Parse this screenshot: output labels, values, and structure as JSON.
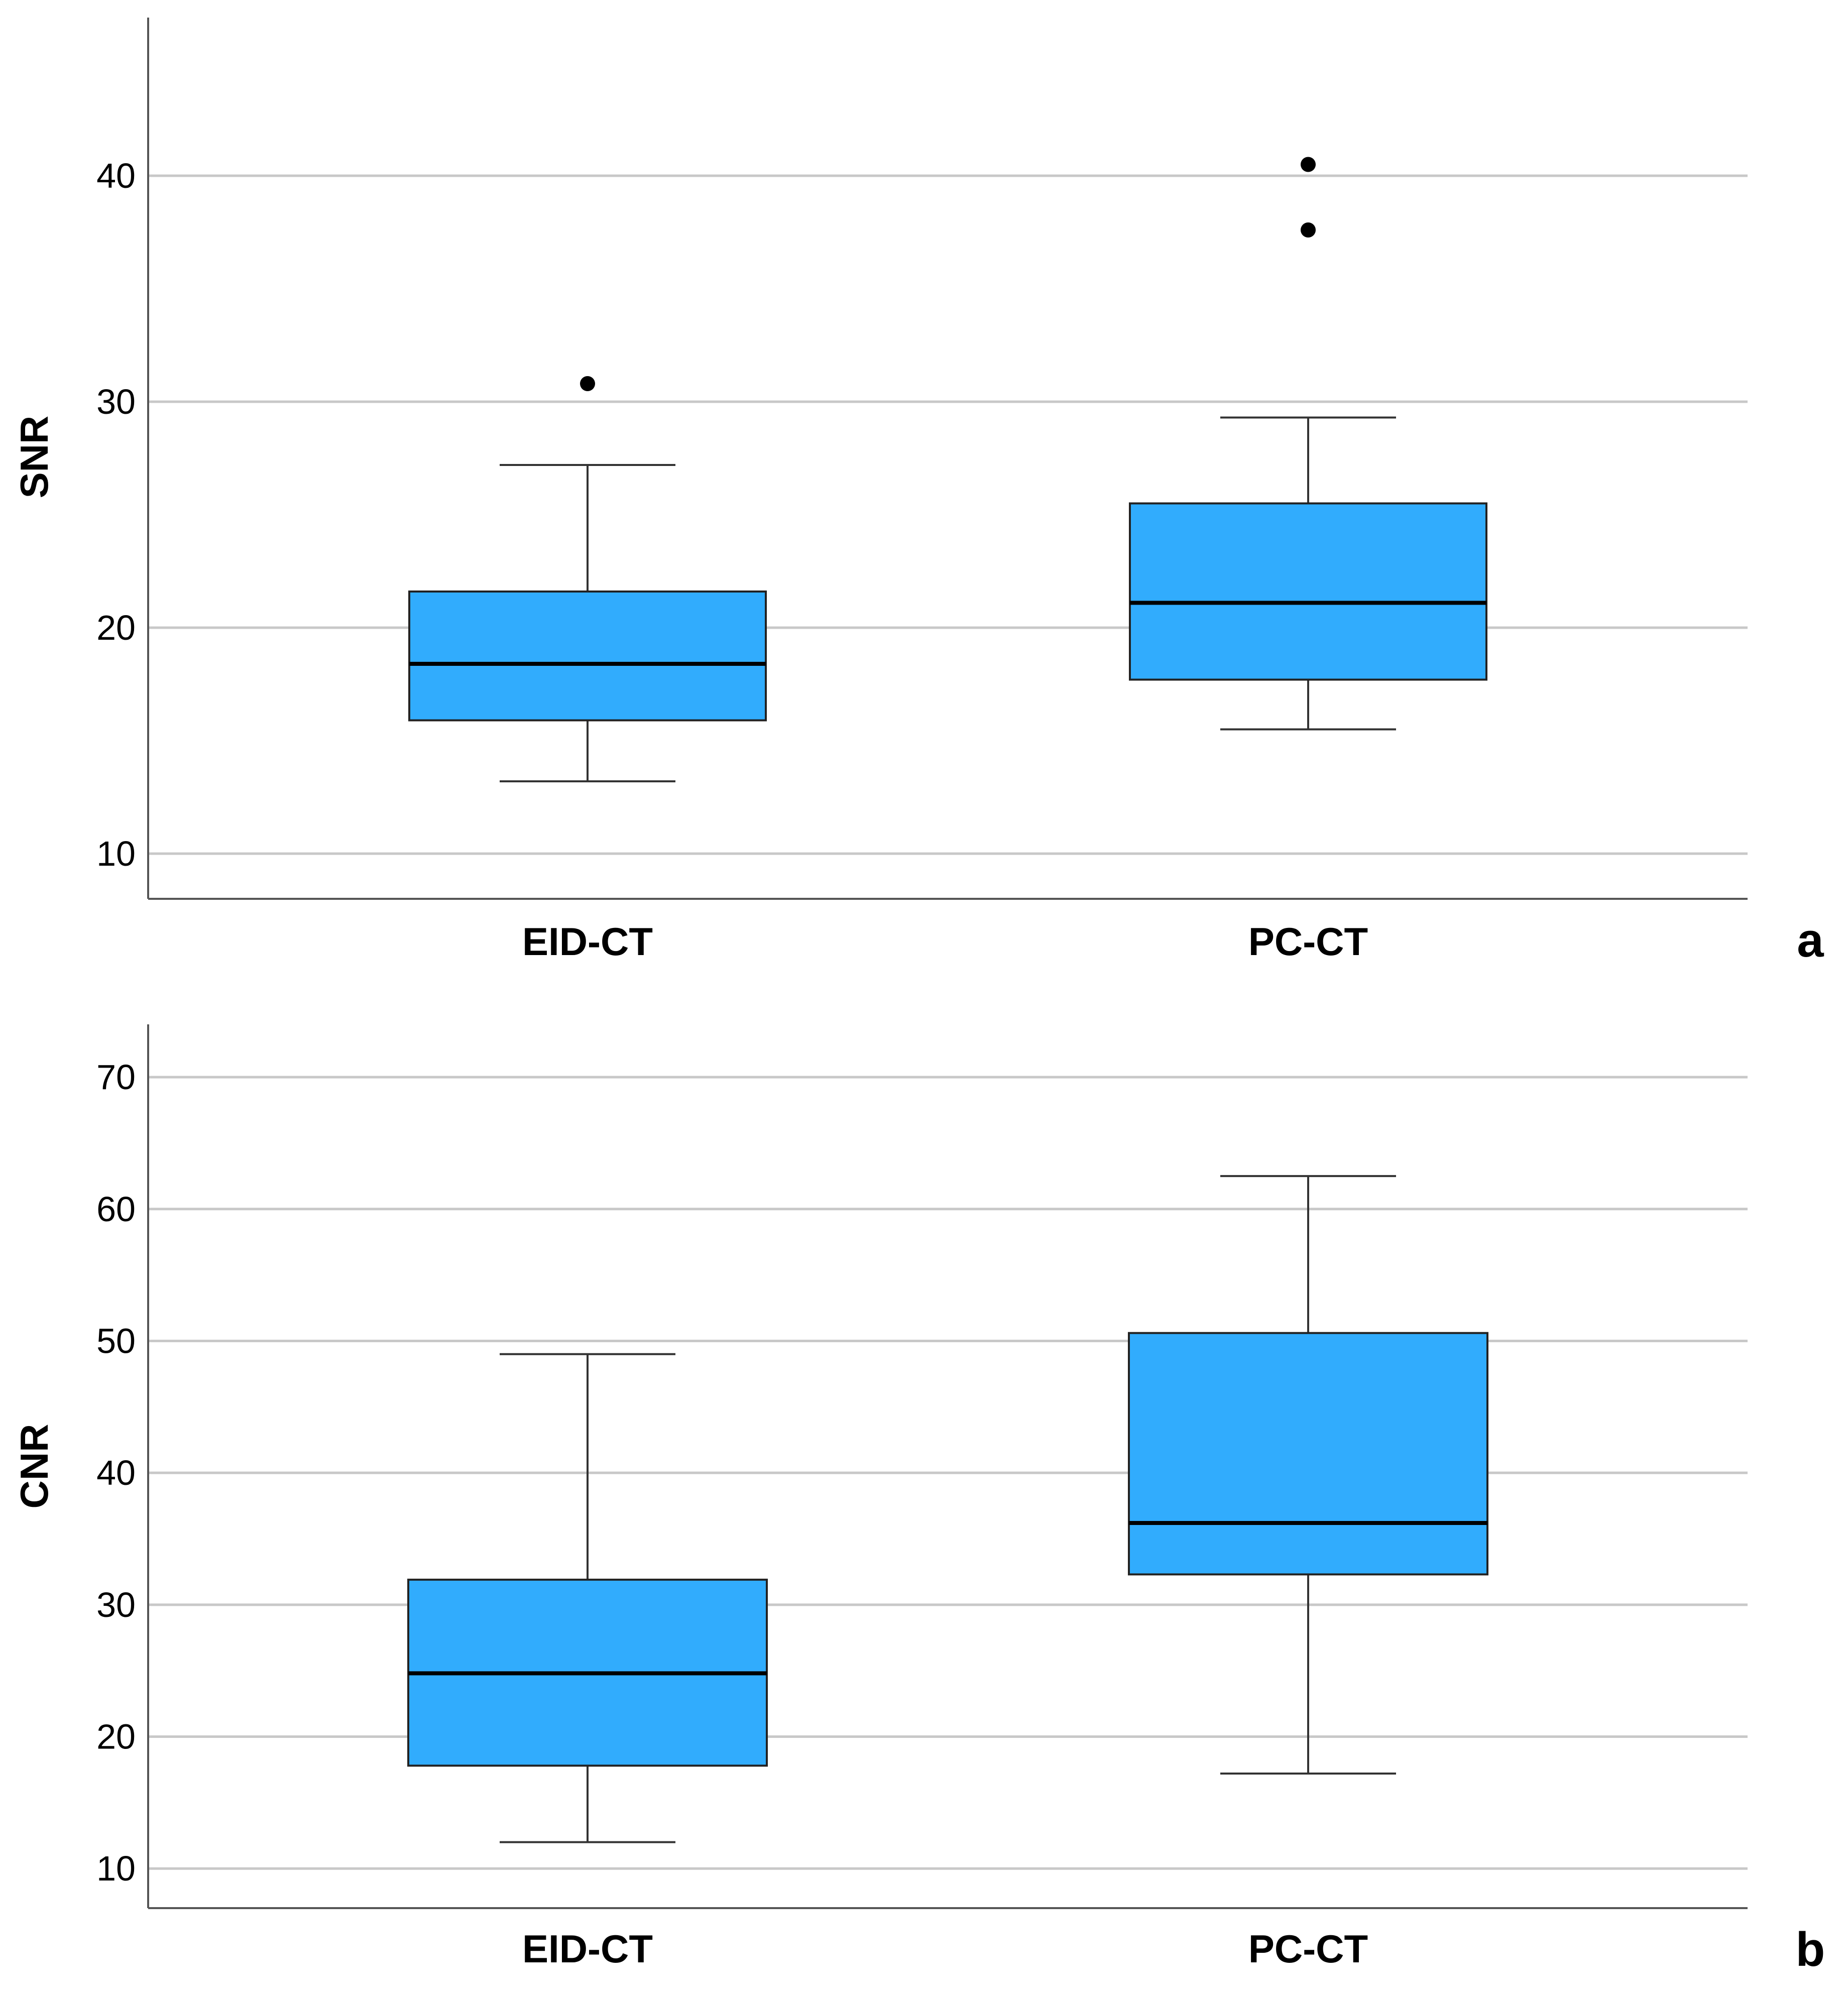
{
  "colors": {
    "box_fill": "#31ACFD",
    "grid": "#C8C8C8",
    "axis": "#555555"
  },
  "chart_data": [
    {
      "type": "boxplot",
      "panel_label": "a",
      "ylabel": "SNR",
      "ylim": [
        8,
        47
      ],
      "yticks": [
        10,
        20,
        30,
        40
      ],
      "grid": true,
      "categories": [
        "EID-CT",
        "PC-CT"
      ],
      "boxes": [
        {
          "name": "EID-CT",
          "whisker_low": 13.2,
          "q1": 15.9,
          "median": 18.4,
          "q3": 21.6,
          "whisker_high": 27.2,
          "outliers": [
            30.8
          ]
        },
        {
          "name": "PC-CT",
          "whisker_low": 15.5,
          "q1": 17.7,
          "median": 21.1,
          "q3": 25.5,
          "whisker_high": 29.3,
          "outliers": [
            40.5,
            37.6
          ]
        }
      ]
    },
    {
      "type": "boxplot",
      "panel_label": "b",
      "ylabel": "CNR",
      "ylim": [
        7,
        74
      ],
      "yticks": [
        10,
        20,
        30,
        40,
        50,
        60,
        70
      ],
      "grid": true,
      "categories": [
        "EID-CT",
        "PC-CT"
      ],
      "boxes": [
        {
          "name": "EID-CT",
          "whisker_low": 12,
          "q1": 17.8,
          "median": 24.8,
          "q3": 31.9,
          "whisker_high": 49,
          "outliers": []
        },
        {
          "name": "PC-CT",
          "whisker_low": 17.2,
          "q1": 32.3,
          "median": 36.2,
          "q3": 50.6,
          "whisker_high": 62.5,
          "outliers": []
        }
      ]
    }
  ]
}
